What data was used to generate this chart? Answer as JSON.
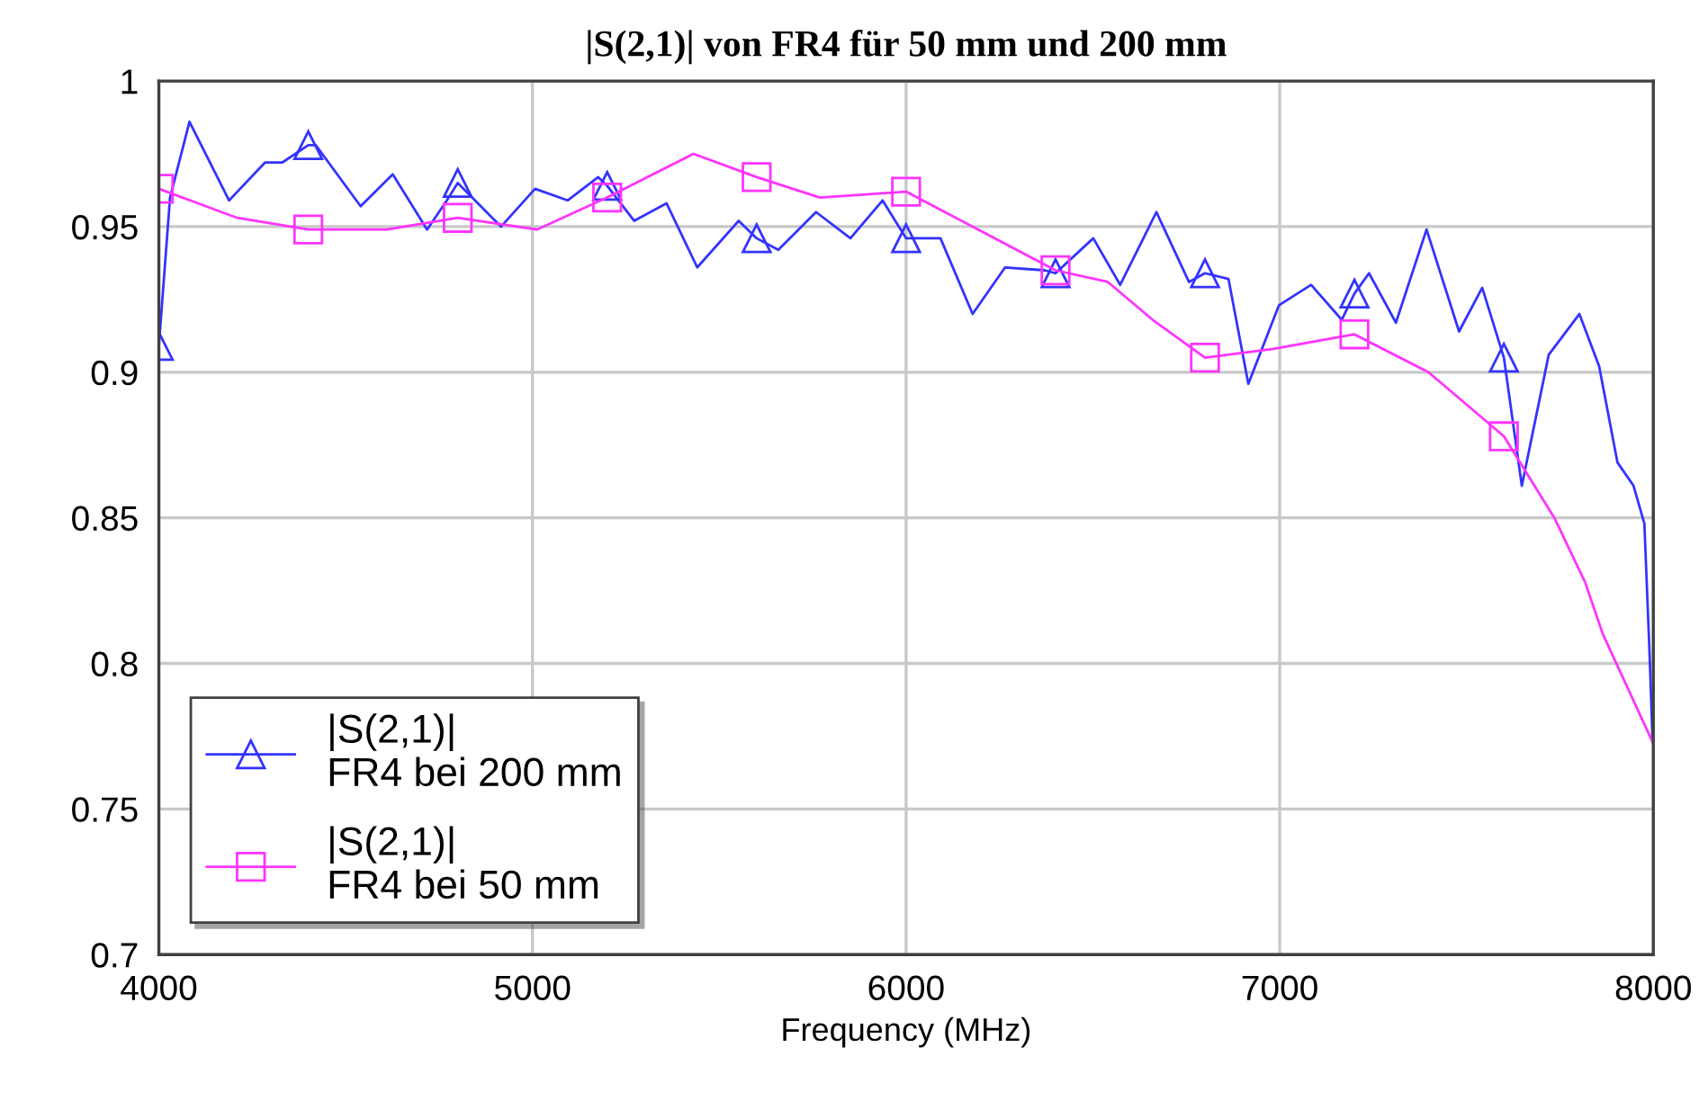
{
  "chart_data": {
    "type": "line",
    "title": "|S(2,1)| von FR4 für 50 mm und 200 mm",
    "xlabel": "Frequency (MHz)",
    "xlim": [
      4000,
      8000
    ],
    "xticks": [
      4000,
      5000,
      6000,
      7000,
      8000
    ],
    "ylim": [
      0.7,
      1
    ],
    "yticks": [
      0.7,
      0.75,
      0.8,
      0.85,
      0.9,
      0.95,
      1
    ],
    "grid": true,
    "legend": "bottom left",
    "series": [
      {
        "name": "|S(2,1)|\nFR4 bei 200 mm",
        "color": "#3333ff",
        "x": [
          4000,
          4030,
          4082,
          4188,
          4284,
          4330,
          4400,
          4420,
          4540,
          4626,
          4718,
          4771,
          4800,
          4916,
          5007,
          5094,
          5176,
          5200,
          5272,
          5359,
          5441,
          5552,
          5600,
          5658,
          5759,
          5851,
          5937,
          6000,
          6092,
          6178,
          6265,
          6371,
          6400,
          6501,
          6573,
          6670,
          6757,
          6800,
          6863,
          6916,
          6998,
          7084,
          7166,
          7200,
          7239,
          7311,
          7393,
          7480,
          7542,
          7600,
          7648,
          7720,
          7802,
          7855,
          7904,
          7947,
          7976,
          7990,
          7998
        ],
        "values": [
          0.909,
          0.96,
          0.986,
          0.959,
          0.972,
          0.972,
          0.978,
          0.978,
          0.957,
          0.968,
          0.949,
          0.959,
          0.965,
          0.95,
          0.963,
          0.959,
          0.967,
          0.964,
          0.952,
          0.958,
          0.936,
          0.952,
          0.946,
          0.942,
          0.955,
          0.946,
          0.959,
          0.946,
          0.946,
          0.92,
          0.936,
          0.935,
          0.934,
          0.946,
          0.93,
          0.955,
          0.931,
          0.934,
          0.932,
          0.896,
          0.923,
          0.93,
          0.918,
          0.927,
          0.934,
          0.917,
          0.949,
          0.914,
          0.929,
          0.905,
          0.861,
          0.906,
          0.92,
          0.902,
          0.869,
          0.861,
          0.848,
          0.803,
          0.773
        ]
      },
      {
        "name": "|S(2,1)|\nFR4 bei 50 mm",
        "color": "#ff33ff",
        "x": [
          4000,
          4210,
          4400,
          4610,
          4800,
          5012,
          5200,
          5431,
          5600,
          5769,
          6000,
          6193,
          6400,
          6540,
          6660,
          6800,
          6983,
          7200,
          7398,
          7600,
          7735,
          7817,
          7865,
          7998
        ],
        "values": [
          0.963,
          0.953,
          0.949,
          0.949,
          0.953,
          0.949,
          0.96,
          0.975,
          0.967,
          0.96,
          0.962,
          0.949,
          0.935,
          0.931,
          0.918,
          0.905,
          0.908,
          0.913,
          0.9,
          0.878,
          0.85,
          0.828,
          0.81,
          0.773
        ]
      }
    ]
  }
}
